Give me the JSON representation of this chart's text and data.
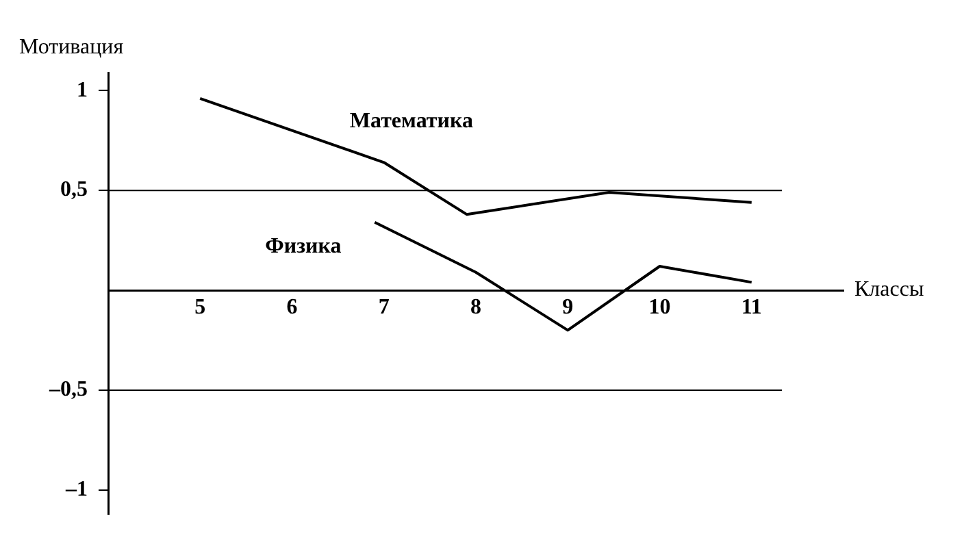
{
  "chart_data": {
    "type": "line",
    "xlabel": "Классы",
    "ylabel": "Мотивация",
    "xlim": [
      4,
      12
    ],
    "xticks": [
      5,
      6,
      7,
      8,
      9,
      10,
      11
    ],
    "ylim": [
      -1.12,
      1.09
    ],
    "yticks": [
      {
        "value": 1,
        "label": "1"
      },
      {
        "value": 0.5,
        "label": "0,5"
      },
      {
        "value": -0.5,
        "label": "–0,5"
      },
      {
        "value": -1,
        "label": "–1"
      }
    ],
    "grid": false,
    "legend": false,
    "marker": "none",
    "line_style": "solid",
    "ref_lines": [
      {
        "axis": "y",
        "value": 0.5,
        "color": "#000000"
      },
      {
        "axis": "y",
        "value": -0.5,
        "color": "#000000"
      }
    ],
    "series": [
      {
        "name": "Математика",
        "color": "#000000",
        "x": [
          5,
          7,
          7.9,
          9.45,
          11
        ],
        "values": [
          0.96,
          0.64,
          0.38,
          0.49,
          0.44
        ]
      },
      {
        "name": "Физика",
        "color": "#000000",
        "x": [
          6.9,
          8,
          9,
          10,
          11
        ],
        "values": [
          0.34,
          0.09,
          -0.2,
          0.12,
          0.04
        ]
      }
    ]
  }
}
